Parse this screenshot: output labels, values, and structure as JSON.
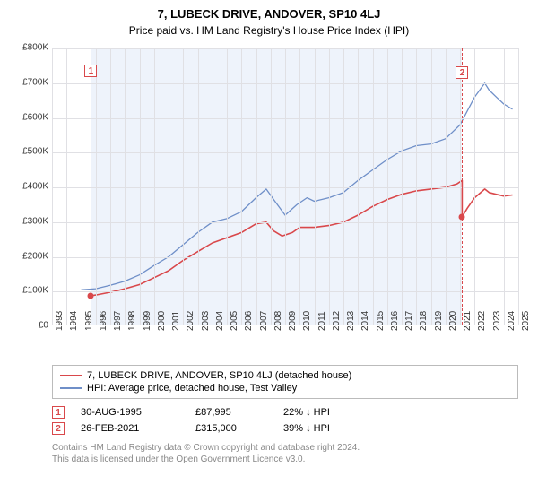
{
  "title": "7, LUBECK DRIVE, ANDOVER, SP10 4LJ",
  "subtitle": "Price paid vs. HM Land Registry's House Price Index (HPI)",
  "chart": {
    "type": "line",
    "background_color": "#ffffff",
    "plot_shade_color": "#eef3fb",
    "grid_color": "#e0e0e4",
    "ylim": [
      0,
      800000
    ],
    "ytick_step": 100000,
    "y_labels": [
      "£0",
      "£100K",
      "£200K",
      "£300K",
      "£400K",
      "£500K",
      "£600K",
      "£700K",
      "£800K"
    ],
    "x_start_year": 1993,
    "x_end_year": 2025,
    "x_labels": [
      "1993",
      "1994",
      "1995",
      "1996",
      "1997",
      "1998",
      "1999",
      "2000",
      "2001",
      "2002",
      "2003",
      "2004",
      "2005",
      "2006",
      "2007",
      "2008",
      "2009",
      "2010",
      "2011",
      "2012",
      "2013",
      "2014",
      "2015",
      "2016",
      "2017",
      "2018",
      "2019",
      "2020",
      "2021",
      "2022",
      "2023",
      "2024",
      "2025"
    ],
    "label_fontsize": 10,
    "series": [
      {
        "name": "7, LUBECK DRIVE, ANDOVER, SP10 4LJ (detached house)",
        "color": "#d9484b",
        "line_width": 1.6,
        "data": [
          [
            1995.67,
            87995
          ],
          [
            1996,
            90000
          ],
          [
            1997,
            98000
          ],
          [
            1998,
            108000
          ],
          [
            1999,
            120000
          ],
          [
            2000,
            140000
          ],
          [
            2001,
            160000
          ],
          [
            2002,
            190000
          ],
          [
            2003,
            215000
          ],
          [
            2004,
            240000
          ],
          [
            2005,
            255000
          ],
          [
            2006,
            270000
          ],
          [
            2007,
            295000
          ],
          [
            2007.7,
            300000
          ],
          [
            2008.2,
            275000
          ],
          [
            2008.8,
            260000
          ],
          [
            2009.5,
            270000
          ],
          [
            2010,
            285000
          ],
          [
            2011,
            285000
          ],
          [
            2012,
            290000
          ],
          [
            2013,
            300000
          ],
          [
            2014,
            320000
          ],
          [
            2015,
            345000
          ],
          [
            2016,
            365000
          ],
          [
            2017,
            380000
          ],
          [
            2018,
            390000
          ],
          [
            2019,
            395000
          ],
          [
            2020,
            400000
          ],
          [
            2020.8,
            410000
          ],
          [
            2021.15,
            420000
          ],
          [
            2021.15,
            315000
          ],
          [
            2021.5,
            340000
          ],
          [
            2022,
            370000
          ],
          [
            2022.7,
            395000
          ],
          [
            2023,
            385000
          ],
          [
            2023.5,
            380000
          ],
          [
            2024,
            375000
          ],
          [
            2024.6,
            378000
          ]
        ]
      },
      {
        "name": "HPI: Average price, detached house, Test Valley",
        "color": "#6f8fc8",
        "line_width": 1.3,
        "data": [
          [
            1995,
            105000
          ],
          [
            1996,
            108000
          ],
          [
            1997,
            118000
          ],
          [
            1998,
            130000
          ],
          [
            1999,
            148000
          ],
          [
            2000,
            175000
          ],
          [
            2001,
            200000
          ],
          [
            2002,
            235000
          ],
          [
            2003,
            270000
          ],
          [
            2004,
            300000
          ],
          [
            2005,
            310000
          ],
          [
            2006,
            330000
          ],
          [
            2007,
            370000
          ],
          [
            2007.7,
            395000
          ],
          [
            2008.3,
            360000
          ],
          [
            2009,
            320000
          ],
          [
            2009.8,
            350000
          ],
          [
            2010.5,
            370000
          ],
          [
            2011,
            360000
          ],
          [
            2012,
            370000
          ],
          [
            2013,
            385000
          ],
          [
            2014,
            420000
          ],
          [
            2015,
            450000
          ],
          [
            2016,
            480000
          ],
          [
            2017,
            505000
          ],
          [
            2018,
            520000
          ],
          [
            2019,
            525000
          ],
          [
            2020,
            540000
          ],
          [
            2021,
            580000
          ],
          [
            2022,
            660000
          ],
          [
            2022.7,
            700000
          ],
          [
            2023,
            680000
          ],
          [
            2023.5,
            660000
          ],
          [
            2024,
            640000
          ],
          [
            2024.6,
            625000
          ]
        ]
      }
    ],
    "sale_markers": [
      {
        "n": "1",
        "year": 1995.67,
        "price": 87995
      },
      {
        "n": "2",
        "year": 2021.15,
        "price": 315000
      }
    ]
  },
  "legend": {
    "series1_label": "7, LUBECK DRIVE, ANDOVER, SP10 4LJ (detached house)",
    "series2_label": "HPI: Average price, detached house, Test Valley"
  },
  "sales": [
    {
      "n": "1",
      "date": "30-AUG-1995",
      "price": "£87,995",
      "diff": "22% ↓ HPI"
    },
    {
      "n": "2",
      "date": "26-FEB-2021",
      "price": "£315,000",
      "diff": "39% ↓ HPI"
    }
  ],
  "footer_line1": "Contains HM Land Registry data © Crown copyright and database right 2024.",
  "footer_line2": "This data is licensed under the Open Government Licence v3.0."
}
